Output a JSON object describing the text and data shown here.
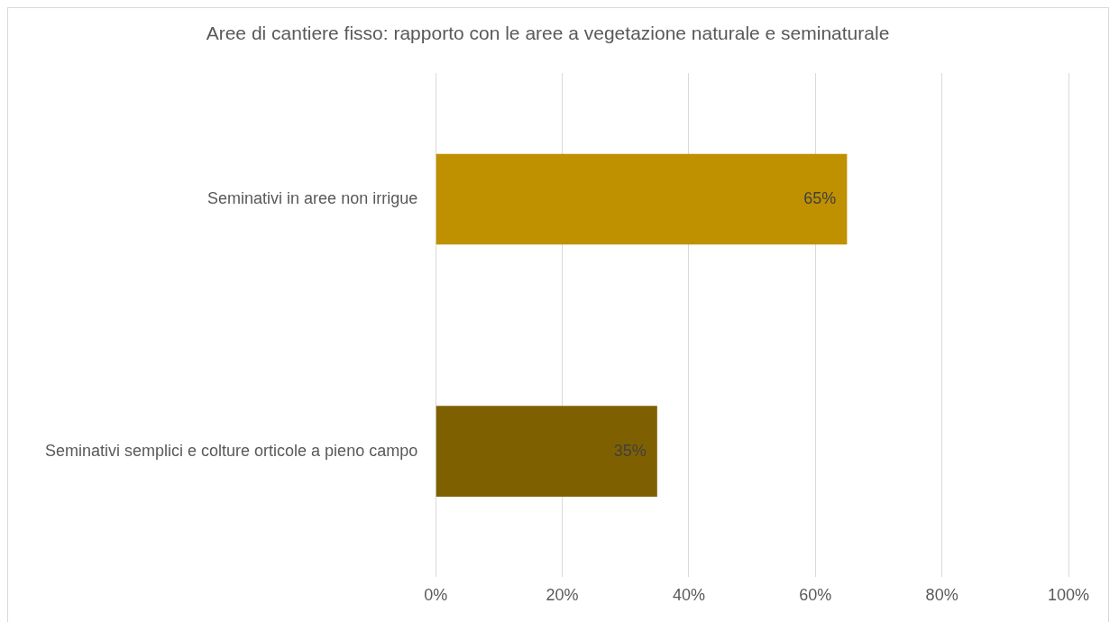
{
  "chart_data": {
    "type": "bar",
    "orientation": "horizontal",
    "title": "Aree di cantiere fisso: rapporto con le aree a vegetazione naturale e seminaturale",
    "categories": [
      "Seminativi in aree non irrigue",
      "Seminativi semplici e colture orticole a pieno campo"
    ],
    "values": [
      65,
      35
    ],
    "colors": [
      "#bf9000",
      "#7f6000"
    ],
    "value_labels": [
      "65%",
      "35%"
    ],
    "xlim": [
      0,
      100
    ],
    "xticks": [
      {
        "value": 0,
        "label": "0%"
      },
      {
        "value": 20,
        "label": "20%"
      },
      {
        "value": 40,
        "label": "40%"
      },
      {
        "value": 60,
        "label": "60%"
      },
      {
        "value": 80,
        "label": "80%"
      },
      {
        "value": 100,
        "label": "100%"
      }
    ],
    "grid": "x",
    "legend": false
  }
}
